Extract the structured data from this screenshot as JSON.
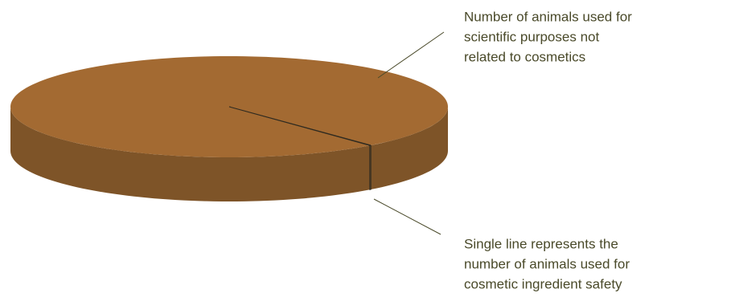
{
  "chart_data": {
    "type": "pie",
    "categories": [
      [
        "Number of animals used for",
        "scientific purposes not",
        "related to cosmetics"
      ],
      [
        "Single line represents the",
        "number of animals used for",
        "cosmetic ingredient safety"
      ]
    ],
    "values": [
      99.9,
      0.1
    ],
    "colors": [
      "#a36a32",
      "#a36a32"
    ],
    "side_colors": [
      "#7e5428",
      "#7e5428"
    ],
    "three_d": true
  }
}
